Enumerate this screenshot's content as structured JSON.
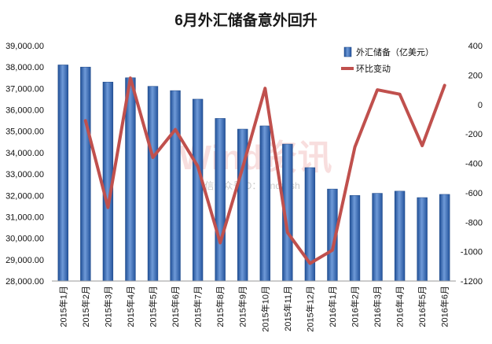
{
  "chart_data": {
    "type": "bar+line",
    "title": "6月外汇储备意外回升",
    "categories": [
      "2015年1月",
      "2015年2月",
      "2015年3月",
      "2015年4月",
      "2015年5月",
      "2015年6月",
      "2015年7月",
      "2015年8月",
      "2015年9月",
      "2015年10月",
      "2015年11月",
      "2015年12月",
      "2016年1月",
      "2016年2月",
      "2016年3月",
      "2016年4月",
      "2016年5月",
      "2016年6月"
    ],
    "series": [
      {
        "name": "外汇储备（亿美元）",
        "type": "bar",
        "axis": "left",
        "color": "#3f6fb8",
        "values": [
          38100,
          38000,
          37300,
          37500,
          37100,
          36900,
          36500,
          35600,
          35100,
          35250,
          34400,
          33300,
          32300,
          32000,
          32100,
          32200,
          31900,
          32050
        ]
      },
      {
        "name": "环比变动",
        "type": "line",
        "axis": "right",
        "color": "#c0504d",
        "values": [
          null,
          -110,
          -700,
          180,
          -360,
          -170,
          -420,
          -940,
          -430,
          110,
          -870,
          -1080,
          -990,
          -290,
          100,
          70,
          -280,
          130
        ]
      }
    ],
    "left_axis": {
      "min": 28000,
      "max": 39000,
      "step": 1000
    },
    "right_axis": {
      "min": -1200,
      "max": 400,
      "step": 200
    },
    "legend_position": "top-right",
    "watermark": {
      "brand": "Wind资讯",
      "note": "微信公众号ID：windzxsh"
    }
  }
}
